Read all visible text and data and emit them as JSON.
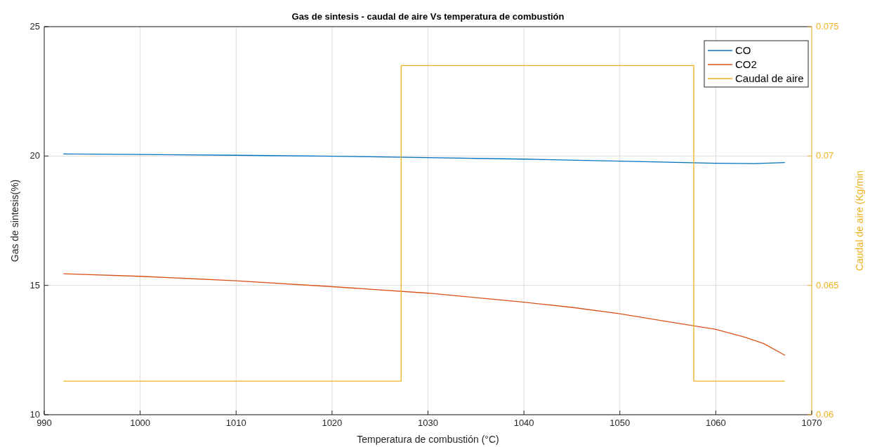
{
  "chart_data": {
    "type": "line",
    "title": "Gas de sintesis - caudal de aire Vs temperatura de combustión",
    "xlabel": "Temperatura de combustión (°C)",
    "ylabel": "Gas de sintesis(%)",
    "y2label": "Caudal de aire (Kg/min",
    "xlim": [
      990,
      1070
    ],
    "xticks": [
      990,
      1000,
      1010,
      1020,
      1030,
      1040,
      1050,
      1060,
      1070
    ],
    "ylim": [
      10,
      25
    ],
    "yticks": [
      10,
      15,
      20,
      25
    ],
    "y2lim": [
      0.06,
      0.075
    ],
    "y2ticks": [
      0.06,
      0.065,
      0.07,
      0.075
    ],
    "grid": true,
    "legend": "top right",
    "series": [
      {
        "name": "CO",
        "color": "#0072bd",
        "x": [
          992,
          1000,
          1010,
          1020,
          1030,
          1040,
          1050,
          1055,
          1060,
          1064,
          1067.2
        ],
        "values": [
          20.08,
          20.06,
          20.03,
          19.99,
          19.94,
          19.88,
          19.8,
          19.76,
          19.72,
          19.71,
          19.75
        ]
      },
      {
        "name": "CO2",
        "color": "#d95319",
        "x": [
          992,
          1000,
          1010,
          1020,
          1030,
          1040,
          1045,
          1050,
          1055,
          1060,
          1063,
          1065,
          1067.2
        ],
        "values": [
          15.45,
          15.35,
          15.18,
          14.95,
          14.7,
          14.35,
          14.15,
          13.9,
          13.6,
          13.3,
          13.0,
          12.75,
          12.3
        ]
      },
      {
        "name": "Caudal de aire",
        "color": "#edb120",
        "type": "step",
        "axis": "y2",
        "x": [
          992,
          1027.2,
          1057.7,
          1067.2
        ],
        "values": [
          0.0613,
          0.0735,
          0.0613,
          0.0613
        ]
      }
    ]
  }
}
